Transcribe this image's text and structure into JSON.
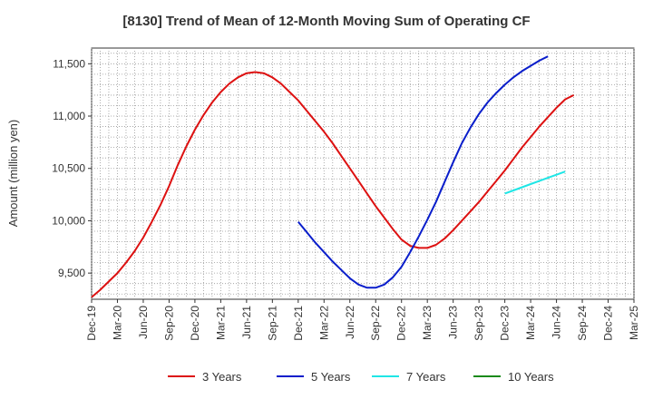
{
  "chart_data": {
    "type": "line",
    "title": "[8130]  Trend of Mean of 12-Month Moving Sum of Operating CF",
    "xlabel": "",
    "ylabel": "Amount (million yen)",
    "ylim": [
      9250,
      11650
    ],
    "yticks": [
      9500,
      10000,
      10500,
      11000,
      11500
    ],
    "ytick_labels": [
      "9,500",
      "10,000",
      "10,500",
      "11,000",
      "11,500"
    ],
    "grid": true,
    "legend_position": "bottom",
    "x_start": "Dec-19",
    "x_end": "Mar-25",
    "x_ticks": [
      "Dec-19",
      "Mar-20",
      "Jun-20",
      "Sep-20",
      "Dec-20",
      "Mar-21",
      "Jun-21",
      "Sep-21",
      "Dec-21",
      "Mar-22",
      "Jun-22",
      "Sep-22",
      "Dec-22",
      "Mar-23",
      "Jun-23",
      "Sep-23",
      "Dec-23",
      "Mar-24",
      "Jun-24",
      "Sep-24",
      "Dec-24",
      "Mar-25"
    ],
    "series": [
      {
        "name": "3 Years",
        "color": "#dd1111",
        "start": "Dec-19",
        "values": [
          9270,
          9340,
          9420,
          9500,
          9600,
          9710,
          9840,
          9990,
          10150,
          10330,
          10530,
          10710,
          10870,
          11010,
          11130,
          11230,
          11310,
          11370,
          11410,
          11420,
          11410,
          11370,
          11310,
          11230,
          11150,
          11050,
          10950,
          10850,
          10740,
          10620,
          10500,
          10380,
          10260,
          10140,
          10030,
          9920,
          9820,
          9760,
          9740,
          9740,
          9770,
          9830,
          9910,
          10000,
          10090,
          10180,
          10280,
          10380,
          10480,
          10590,
          10700,
          10800,
          10900,
          10990,
          11080,
          11160,
          11200
        ]
      },
      {
        "name": "5 Years",
        "color": "#0a1ecb",
        "start": "Dec-21",
        "values": [
          9990,
          9890,
          9790,
          9700,
          9610,
          9530,
          9450,
          9390,
          9360,
          9360,
          9390,
          9460,
          9560,
          9700,
          9850,
          10010,
          10180,
          10370,
          10560,
          10740,
          10890,
          11020,
          11130,
          11220,
          11300,
          11370,
          11430,
          11480,
          11530,
          11570
        ]
      },
      {
        "name": "7 Years",
        "color": "#1fe6e6",
        "start": "Dec-23",
        "values": [
          10260,
          10290,
          10320,
          10350,
          10380,
          10410,
          10440,
          10470
        ]
      },
      {
        "name": "10 Years",
        "color": "#1a8a1a",
        "start": "",
        "values": []
      }
    ]
  }
}
